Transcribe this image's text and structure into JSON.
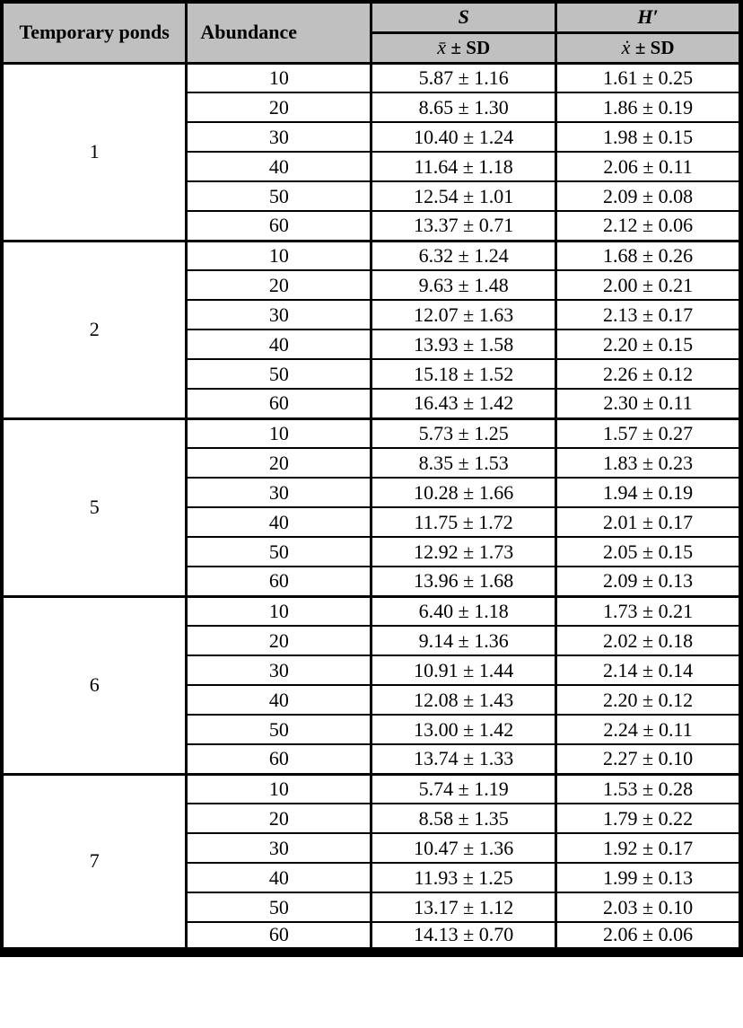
{
  "table": {
    "headers": {
      "ponds": "Temporary ponds",
      "abundance": "Abundance",
      "s": "S",
      "h": "H′"
    },
    "subheaders": {
      "s_mean": "x̄",
      "s_rest": "± SD",
      "h_mean": "ẋ",
      "h_rest": "±  SD"
    },
    "groups": [
      {
        "pond": "1",
        "rows": [
          {
            "abundance": "10",
            "s": "5.87 ± 1.16",
            "h": "1.61 ± 0.25"
          },
          {
            "abundance": "20",
            "s": "8.65 ± 1.30",
            "h": "1.86 ± 0.19"
          },
          {
            "abundance": "30",
            "s": "10.40 ± 1.24",
            "h": "1.98 ± 0.15"
          },
          {
            "abundance": "40",
            "s": "11.64 ± 1.18",
            "h": "2.06 ± 0.11"
          },
          {
            "abundance": "50",
            "s": "12.54 ± 1.01",
            "h": "2.09 ± 0.08"
          },
          {
            "abundance": "60",
            "s": "13.37 ± 0.71",
            "h": "2.12 ± 0.06"
          }
        ]
      },
      {
        "pond": "2",
        "rows": [
          {
            "abundance": "10",
            "s": "6.32 ± 1.24",
            "h": "1.68 ± 0.26"
          },
          {
            "abundance": "20",
            "s": "9.63 ± 1.48",
            "h": "2.00 ± 0.21"
          },
          {
            "abundance": "30",
            "s": "12.07 ± 1.63",
            "h": "2.13 ± 0.17"
          },
          {
            "abundance": "40",
            "s": "13.93 ± 1.58",
            "h": "2.20 ± 0.15"
          },
          {
            "abundance": "50",
            "s": "15.18 ± 1.52",
            "h": "2.26 ± 0.12"
          },
          {
            "abundance": "60",
            "s": "16.43 ± 1.42",
            "h": "2.30 ± 0.11"
          }
        ]
      },
      {
        "pond": "5",
        "rows": [
          {
            "abundance": "10",
            "s": "5.73 ± 1.25",
            "h": "1.57 ± 0.27"
          },
          {
            "abundance": "20",
            "s": "8.35 ± 1.53",
            "h": "1.83 ± 0.23"
          },
          {
            "abundance": "30",
            "s": "10.28 ± 1.66",
            "h": "1.94 ± 0.19"
          },
          {
            "abundance": "40",
            "s": "11.75 ± 1.72",
            "h": "2.01 ± 0.17"
          },
          {
            "abundance": "50",
            "s": "12.92 ± 1.73",
            "h": "2.05 ± 0.15"
          },
          {
            "abundance": "60",
            "s": "13.96 ± 1.68",
            "h": "2.09 ± 0.13"
          }
        ]
      },
      {
        "pond": "6",
        "rows": [
          {
            "abundance": "10",
            "s": "6.40 ± 1.18",
            "h": "1.73 ± 0.21"
          },
          {
            "abundance": "20",
            "s": "9.14 ± 1.36",
            "h": "2.02 ± 0.18"
          },
          {
            "abundance": "30",
            "s": "10.91 ± 1.44",
            "h": "2.14 ± 0.14"
          },
          {
            "abundance": "40",
            "s": "12.08 ± 1.43",
            "h": "2.20 ± 0.12"
          },
          {
            "abundance": "50",
            "s": "13.00 ± 1.42",
            "h": "2.24 ± 0.11"
          },
          {
            "abundance": "60",
            "s": "13.74 ± 1.33",
            "h": "2.27 ± 0.10"
          }
        ]
      },
      {
        "pond": "7",
        "rows": [
          {
            "abundance": "10",
            "s": "5.74 ± 1.19",
            "h": "1.53 ± 0.28"
          },
          {
            "abundance": "20",
            "s": "8.58 ± 1.35",
            "h": "1.79 ± 0.22"
          },
          {
            "abundance": "30",
            "s": "10.47 ± 1.36",
            "h": "1.92 ± 0.17"
          },
          {
            "abundance": "40",
            "s": "11.93 ± 1.25",
            "h": "1.99 ± 0.13"
          },
          {
            "abundance": "50",
            "s": "13.17 ± 1.12",
            "h": "2.03 ± 0.10"
          },
          {
            "abundance": "60",
            "s": "14.13 ± 0.70",
            "h": "2.06 ± 0.06"
          }
        ]
      }
    ]
  },
  "colors": {
    "header_fill": "#c0c0c0",
    "border": "#000000",
    "background": "#ffffff"
  },
  "chart_data": {
    "type": "table",
    "title": "Species richness (S) and Shannon diversity (H′) mean ± SD by temporary pond and abundance",
    "columns": [
      "Temporary ponds",
      "Abundance",
      "S x̄ ± SD",
      "H′ ẋ ± SD"
    ],
    "rows": [
      [
        "1",
        10,
        "5.87 ± 1.16",
        "1.61 ± 0.25"
      ],
      [
        "1",
        20,
        "8.65 ± 1.30",
        "1.86 ± 0.19"
      ],
      [
        "1",
        30,
        "10.40 ± 1.24",
        "1.98 ± 0.15"
      ],
      [
        "1",
        40,
        "11.64 ± 1.18",
        "2.06 ± 0.11"
      ],
      [
        "1",
        50,
        "12.54 ± 1.01",
        "2.09 ± 0.08"
      ],
      [
        "1",
        60,
        "13.37 ± 0.71",
        "2.12 ± 0.06"
      ],
      [
        "2",
        10,
        "6.32 ± 1.24",
        "1.68 ± 0.26"
      ],
      [
        "2",
        20,
        "9.63 ± 1.48",
        "2.00 ± 0.21"
      ],
      [
        "2",
        30,
        "12.07 ± 1.63",
        "2.13 ± 0.17"
      ],
      [
        "2",
        40,
        "13.93 ± 1.58",
        "2.20 ± 0.15"
      ],
      [
        "2",
        50,
        "15.18 ± 1.52",
        "2.26 ± 0.12"
      ],
      [
        "2",
        60,
        "16.43 ± 1.42",
        "2.30 ± 0.11"
      ],
      [
        "5",
        10,
        "5.73 ± 1.25",
        "1.57 ± 0.27"
      ],
      [
        "5",
        20,
        "8.35 ± 1.53",
        "1.83 ± 0.23"
      ],
      [
        "5",
        30,
        "10.28 ± 1.66",
        "1.94 ± 0.19"
      ],
      [
        "5",
        40,
        "11.75 ± 1.72",
        "2.01 ± 0.17"
      ],
      [
        "5",
        50,
        "12.92 ± 1.73",
        "2.05 ± 0.15"
      ],
      [
        "5",
        60,
        "13.96 ± 1.68",
        "2.09 ± 0.13"
      ],
      [
        "6",
        10,
        "6.40 ± 1.18",
        "1.73 ± 0.21"
      ],
      [
        "6",
        20,
        "9.14 ± 1.36",
        "2.02 ± 0.18"
      ],
      [
        "6",
        30,
        "10.91 ± 1.44",
        "2.14 ± 0.14"
      ],
      [
        "6",
        40,
        "12.08 ± 1.43",
        "2.20 ± 0.12"
      ],
      [
        "6",
        50,
        "13.00 ± 1.42",
        "2.24 ± 0.11"
      ],
      [
        "6",
        60,
        "13.74 ± 1.33",
        "2.27 ± 0.10"
      ],
      [
        "7",
        10,
        "5.74 ± 1.19",
        "1.53 ± 0.28"
      ],
      [
        "7",
        20,
        "8.58 ± 1.35",
        "1.79 ± 0.22"
      ],
      [
        "7",
        30,
        "10.47 ± 1.36",
        "1.92 ± 0.17"
      ],
      [
        "7",
        40,
        "11.93 ± 1.25",
        "1.99 ± 0.13"
      ],
      [
        "7",
        50,
        "13.17 ± 1.12",
        "2.03 ± 0.10"
      ],
      [
        "7",
        60,
        "14.13 ± 0.70",
        "2.06 ± 0.06"
      ]
    ]
  }
}
